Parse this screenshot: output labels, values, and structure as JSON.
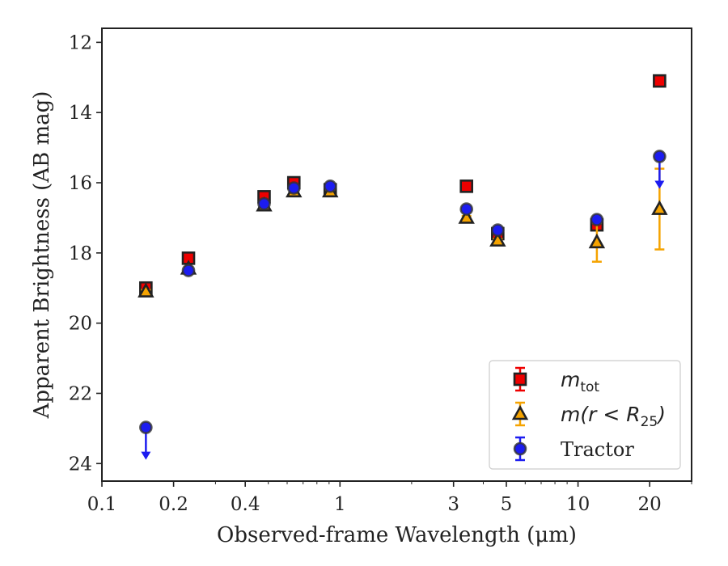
{
  "chart_data": {
    "type": "scatter",
    "title": "",
    "xlabel": "Observed-frame Wavelength (μm)",
    "ylabel": "Apparent Brightness (AB mag)",
    "xscale": "log",
    "xlim": [
      0.1,
      30
    ],
    "ylim": [
      24.5,
      11.6
    ],
    "y_inverted": true,
    "xticks": [
      {
        "value": 0.1,
        "label": "0.1"
      },
      {
        "value": 0.2,
        "label": "0.2"
      },
      {
        "value": 0.4,
        "label": "0.4"
      },
      {
        "value": 1,
        "label": "1"
      },
      {
        "value": 3,
        "label": "3"
      },
      {
        "value": 5,
        "label": "5"
      },
      {
        "value": 10,
        "label": "10"
      },
      {
        "value": 20,
        "label": "20"
      }
    ],
    "yticks": [
      12,
      14,
      16,
      18,
      20,
      22,
      24
    ],
    "grid": false,
    "legend_position": "lower-right",
    "series": [
      {
        "name": "m_tot",
        "legend_label": {
          "main": "m",
          "sub": "tot"
        },
        "marker": "square",
        "color": "#ee0000",
        "points": [
          {
            "x": 0.153,
            "y": 19.0,
            "err": 0.05
          },
          {
            "x": 0.231,
            "y": 18.15,
            "err": 0.07
          },
          {
            "x": 0.48,
            "y": 16.4,
            "err": 0.05
          },
          {
            "x": 0.64,
            "y": 16.0,
            "err": 0.05
          },
          {
            "x": 0.91,
            "y": 16.2,
            "err": 0.05
          },
          {
            "x": 3.4,
            "y": 16.1,
            "err": 0.05
          },
          {
            "x": 4.6,
            "y": 17.45,
            "err": 0.05
          },
          {
            "x": 12.0,
            "y": 17.2,
            "err": 0.06
          },
          {
            "x": 22.0,
            "y": 13.1,
            "err": 0.05
          }
        ]
      },
      {
        "name": "m(r < R25)",
        "legend_label": {
          "main": "m(r < R",
          "sub": "25",
          "close": ")"
        },
        "marker": "triangle",
        "color": "#f5a300",
        "points": [
          {
            "x": 0.153,
            "y": 19.1,
            "err": 0.05
          },
          {
            "x": 0.231,
            "y": 18.45,
            "err": 0.05
          },
          {
            "x": 0.48,
            "y": 16.65,
            "err": 0.05
          },
          {
            "x": 0.64,
            "y": 16.25,
            "err": 0.05
          },
          {
            "x": 0.91,
            "y": 16.25,
            "err": 0.05
          },
          {
            "x": 3.4,
            "y": 17.0,
            "err": 0.05
          },
          {
            "x": 4.6,
            "y": 17.65,
            "err": 0.05
          },
          {
            "x": 12.0,
            "y": 17.7,
            "err": 0.55
          },
          {
            "x": 22.0,
            "y": 16.75,
            "err": 1.15
          }
        ]
      },
      {
        "name": "Tractor",
        "legend_label": {
          "main": "Tractor"
        },
        "marker": "circle",
        "color": "#1c1cf0",
        "points": [
          {
            "x": 0.153,
            "y": 22.97,
            "upper_limit": true
          },
          {
            "x": 0.231,
            "y": 18.5,
            "err": 0.05
          },
          {
            "x": 0.48,
            "y": 16.6,
            "err": 0.05
          },
          {
            "x": 0.64,
            "y": 16.15,
            "err": 0.05
          },
          {
            "x": 0.91,
            "y": 16.1,
            "err": 0.05
          },
          {
            "x": 3.4,
            "y": 16.75,
            "err": 0.05
          },
          {
            "x": 4.6,
            "y": 17.35,
            "err": 0.05
          },
          {
            "x": 12.0,
            "y": 17.05,
            "err": 0.05
          },
          {
            "x": 22.0,
            "y": 15.25,
            "upper_limit": true
          }
        ]
      }
    ]
  }
}
